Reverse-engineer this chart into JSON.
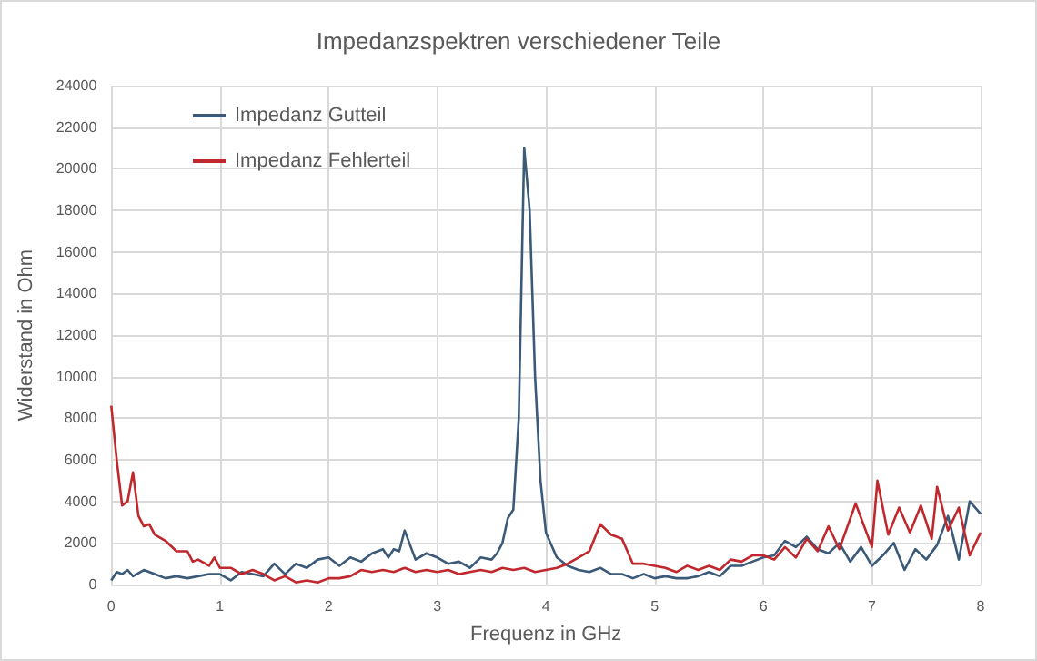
{
  "chart_data": {
    "type": "line",
    "title": "Impedanzspektren verschiedener Teile",
    "xlabel": "Frequenz in GHz",
    "ylabel": "Widerstand in Ohm",
    "xlim": [
      0,
      8
    ],
    "xticks": [
      0,
      1,
      2,
      3,
      4,
      5,
      6,
      7,
      8
    ],
    "ylim": [
      0,
      24000
    ],
    "yticks": [
      0,
      2000,
      4000,
      6000,
      8000,
      10000,
      12000,
      14000,
      16000,
      18000,
      20000,
      22000,
      24000
    ],
    "grid": true,
    "legend": "top left",
    "marker": "none",
    "line_style": "solid",
    "series": [
      {
        "name": "Impedanz Gutteil",
        "color": "#3b5a78",
        "x": [
          0,
          0.05,
          0.1,
          0.15,
          0.2,
          0.3,
          0.4,
          0.5,
          0.6,
          0.7,
          0.8,
          0.9,
          1.0,
          1.1,
          1.2,
          1.3,
          1.4,
          1.5,
          1.6,
          1.7,
          1.8,
          1.9,
          2.0,
          2.1,
          2.2,
          2.3,
          2.4,
          2.5,
          2.55,
          2.6,
          2.65,
          2.7,
          2.8,
          2.9,
          3.0,
          3.1,
          3.2,
          3.3,
          3.4,
          3.5,
          3.55,
          3.6,
          3.65,
          3.7,
          3.75,
          3.8,
          3.85,
          3.9,
          3.95,
          4.0,
          4.1,
          4.2,
          4.3,
          4.4,
          4.5,
          4.6,
          4.7,
          4.8,
          4.9,
          5.0,
          5.1,
          5.2,
          5.3,
          5.4,
          5.5,
          5.6,
          5.7,
          5.8,
          5.9,
          6.0,
          6.1,
          6.2,
          6.3,
          6.4,
          6.5,
          6.6,
          6.7,
          6.8,
          6.9,
          7.0,
          7.1,
          7.2,
          7.3,
          7.4,
          7.5,
          7.6,
          7.7,
          7.8,
          7.9,
          8.0
        ],
        "values": [
          200,
          600,
          500,
          700,
          400,
          700,
          500,
          300,
          400,
          300,
          400,
          500,
          500,
          200,
          600,
          500,
          400,
          1000,
          500,
          1000,
          800,
          1200,
          1300,
          900,
          1300,
          1100,
          1500,
          1700,
          1300,
          1700,
          1600,
          2600,
          1200,
          1500,
          1300,
          1000,
          1100,
          800,
          1300,
          1200,
          1500,
          2000,
          3200,
          3600,
          8000,
          21000,
          18000,
          10000,
          5000,
          2500,
          1300,
          900,
          700,
          600,
          800,
          500,
          500,
          300,
          500,
          300,
          400,
          300,
          300,
          400,
          600,
          400,
          900,
          900,
          1100,
          1300,
          1400,
          2100,
          1800,
          2300,
          1700,
          1500,
          2000,
          1100,
          1800,
          900,
          1400,
          2000,
          700,
          1700,
          1200,
          1900,
          3300,
          1200,
          4000,
          3400
        ]
      },
      {
        "name": "Impedanz Fehlerteil",
        "color": "#c0282d",
        "x": [
          0,
          0.05,
          0.1,
          0.15,
          0.2,
          0.25,
          0.3,
          0.35,
          0.4,
          0.5,
          0.6,
          0.7,
          0.75,
          0.8,
          0.9,
          0.95,
          1.0,
          1.1,
          1.2,
          1.3,
          1.4,
          1.5,
          1.6,
          1.7,
          1.8,
          1.9,
          2.0,
          2.1,
          2.2,
          2.3,
          2.4,
          2.5,
          2.6,
          2.7,
          2.8,
          2.9,
          3.0,
          3.1,
          3.2,
          3.3,
          3.4,
          3.5,
          3.6,
          3.7,
          3.8,
          3.9,
          4.0,
          4.1,
          4.2,
          4.3,
          4.4,
          4.5,
          4.6,
          4.7,
          4.8,
          4.9,
          5.0,
          5.1,
          5.2,
          5.3,
          5.4,
          5.5,
          5.6,
          5.7,
          5.8,
          5.9,
          6.0,
          6.1,
          6.2,
          6.3,
          6.4,
          6.5,
          6.6,
          6.7,
          6.85,
          7.0,
          7.05,
          7.15,
          7.25,
          7.35,
          7.45,
          7.55,
          7.6,
          7.7,
          7.8,
          7.9,
          8.0
        ],
        "values": [
          8600,
          6000,
          3800,
          4000,
          5400,
          3300,
          2800,
          2900,
          2400,
          2100,
          1600,
          1600,
          1100,
          1200,
          900,
          1300,
          800,
          800,
          500,
          700,
          500,
          200,
          400,
          100,
          200,
          100,
          300,
          300,
          400,
          700,
          600,
          700,
          600,
          800,
          600,
          700,
          600,
          700,
          500,
          600,
          700,
          600,
          800,
          700,
          800,
          600,
          700,
          800,
          1000,
          1300,
          1600,
          2900,
          2400,
          2200,
          1000,
          1000,
          900,
          800,
          600,
          900,
          700,
          900,
          700,
          1200,
          1100,
          1400,
          1400,
          1200,
          1800,
          1300,
          2200,
          1600,
          2800,
          1700,
          3900,
          1800,
          5000,
          2400,
          3700,
          2500,
          3800,
          2200,
          4700,
          2600,
          3700,
          1400,
          2500
        ]
      }
    ]
  }
}
